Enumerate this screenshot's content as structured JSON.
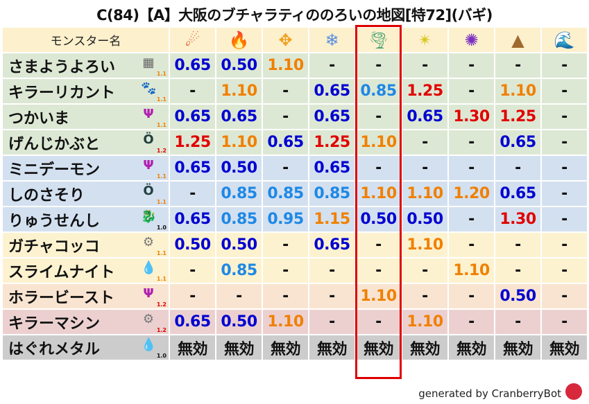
{
  "title": "C(84)【A】大阪のブチャラティののろいの地図[特72](バギ)",
  "header": {
    "name_label": "モンスター名"
  },
  "elements": [
    {
      "icon": "fire-icon",
      "glyph": "☄",
      "color": "#e0401a"
    },
    {
      "icon": "flame-icon",
      "glyph": "🔥",
      "color": "#f06010"
    },
    {
      "icon": "explosion-icon",
      "glyph": "✥",
      "color": "#f0a020"
    },
    {
      "icon": "ice-icon",
      "glyph": "❄",
      "color": "#5a8fe0"
    },
    {
      "icon": "wind-icon",
      "glyph": "🌪",
      "color": "#40a070"
    },
    {
      "icon": "lightning-icon",
      "glyph": "✴",
      "color": "#d8c820"
    },
    {
      "icon": "darkness-icon",
      "glyph": "✺",
      "color": "#7a30c0"
    },
    {
      "icon": "earth-icon",
      "glyph": "▲",
      "color": "#a06a30"
    },
    {
      "icon": "water-icon",
      "glyph": "🌊",
      "color": "#2060c0"
    }
  ],
  "highlight_column": 4,
  "rows": [
    {
      "name": "さまようよろい",
      "icon": "wall-icon",
      "glyph": "▦",
      "icolor": "#666",
      "level": "1.1",
      "bg": "g",
      "values": [
        "0.65",
        "0.50",
        "1.10",
        "-",
        "-",
        "-",
        "-",
        "-",
        "-"
      ]
    },
    {
      "name": "キラーリカント",
      "icon": "paw-icon",
      "glyph": "🐾",
      "icolor": "#e08020",
      "level": "1.1",
      "bg": "g",
      "values": [
        "-",
        "1.10",
        "-",
        "0.65",
        "0.85",
        "1.25",
        "-",
        "1.10",
        "-"
      ]
    },
    {
      "name": "つかいま",
      "icon": "devil-trident-icon",
      "glyph": "Ψ",
      "icolor": "#b020b0",
      "level": "1.1",
      "bg": "g",
      "values": [
        "0.65",
        "0.65",
        "-",
        "0.65",
        "-",
        "0.65",
        "1.30",
        "1.25",
        "-"
      ]
    },
    {
      "name": "げんじかぶと",
      "icon": "bug-icon",
      "glyph": "Ö",
      "icolor": "#204040",
      "level": "1.2",
      "bg": "g",
      "values": [
        "1.25",
        "1.10",
        "0.65",
        "1.25",
        "1.10",
        "-",
        "-",
        "0.65",
        "-"
      ]
    },
    {
      "name": "ミニデーモン",
      "icon": "devil-trident-icon",
      "glyph": "Ψ",
      "icolor": "#b020b0",
      "level": "1.1",
      "bg": "b",
      "values": [
        "0.65",
        "0.50",
        "-",
        "0.65",
        "-",
        "-",
        "-",
        "-",
        "-"
      ]
    },
    {
      "name": "しのさそり",
      "icon": "bug-icon",
      "glyph": "Ö",
      "icolor": "#204040",
      "level": "1.1",
      "bg": "b",
      "values": [
        "-",
        "0.85",
        "0.85",
        "0.85",
        "1.10",
        "1.10",
        "1.20",
        "0.65",
        "-"
      ]
    },
    {
      "name": "りゅうせんし",
      "icon": "dragon-icon",
      "glyph": "🐉",
      "icolor": "#c02020",
      "level": "1.0",
      "bg": "b",
      "values": [
        "0.65",
        "0.85",
        "0.95",
        "1.15",
        "0.50",
        "0.50",
        "-",
        "1.30",
        "-"
      ]
    },
    {
      "name": "ガチャコッコ",
      "icon": "gear-icon",
      "glyph": "⚙",
      "icolor": "#777",
      "level": "1.1",
      "bg": "y",
      "values": [
        "0.50",
        "0.50",
        "-",
        "0.65",
        "-",
        "1.10",
        "-",
        "-",
        "-"
      ]
    },
    {
      "name": "スライムナイト",
      "icon": "slime-icon",
      "glyph": "💧",
      "icolor": "#2080d0",
      "level": "1.1",
      "bg": "y",
      "values": [
        "-",
        "0.85",
        "-",
        "-",
        "-",
        "-",
        "1.10",
        "-",
        "-"
      ]
    },
    {
      "name": "ホラービースト",
      "icon": "devil-trident-icon",
      "glyph": "Ψ",
      "icolor": "#b020b0",
      "level": "1.2",
      "bg": "p",
      "values": [
        "-",
        "-",
        "-",
        "-",
        "1.10",
        "-",
        "-",
        "0.50",
        "-"
      ]
    },
    {
      "name": "キラーマシン",
      "icon": "gear-icon",
      "glyph": "⚙",
      "icolor": "#777",
      "level": "1.2",
      "bg": "k",
      "values": [
        "0.65",
        "0.50",
        "1.10",
        "-",
        "-",
        "1.10",
        "-",
        "-",
        "-"
      ]
    },
    {
      "name": "はぐれメタル",
      "icon": "slime-icon",
      "glyph": "💧",
      "icolor": "#2080d0",
      "level": "1.0",
      "bg": "m",
      "values": [
        "無効",
        "無効",
        "無効",
        "無効",
        "無効",
        "無効",
        "無効",
        "無効",
        "無効"
      ]
    }
  ],
  "value_colors": {
    "strong": "#0000d0",
    "resist": "#1e88e5",
    "weak": "#f08000",
    "very_weak": "#e00000",
    "immune": "#111111"
  },
  "level_colors": {
    "1.0": "#111111",
    "1.1": "#f08000",
    "1.2": "#e00000"
  },
  "footer": "generated by CranberryBot"
}
